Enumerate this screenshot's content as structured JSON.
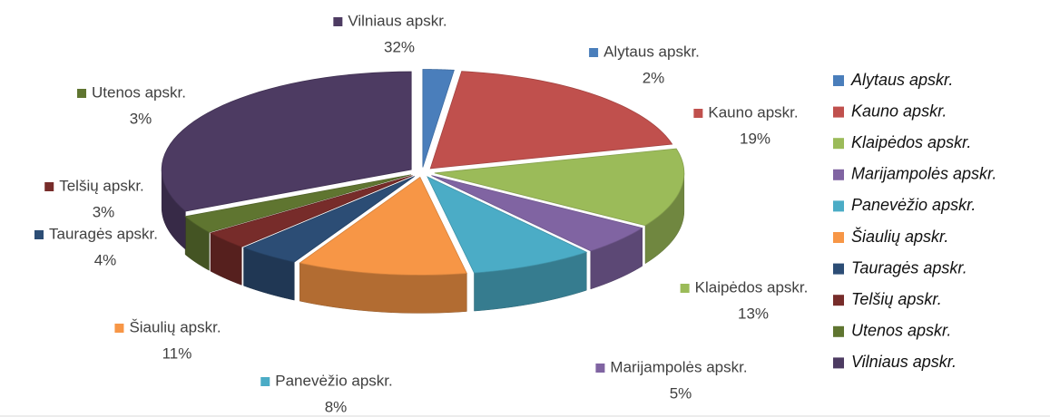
{
  "chart_data": {
    "type": "pie",
    "categories": [
      "Alytaus apskr.",
      "Kauno apskr.",
      "Klaipėdos apskr.",
      "Marijampolės apskr.",
      "Panevėžio apskr.",
      "Šiaulių apskr.",
      "Tauragės apskr.",
      "Telšių apskr.",
      "Utenos apskr.",
      "Vilniaus apskr."
    ],
    "values": [
      2,
      19,
      13,
      5,
      8,
      11,
      4,
      3,
      3,
      32
    ],
    "value_labels": [
      "2%",
      "19%",
      "13%",
      "5%",
      "8%",
      "11%",
      "4%",
      "3%",
      "3%",
      "32%"
    ],
    "colors": [
      "#4a7ebb",
      "#c0504d",
      "#9bbb59",
      "#8064a2",
      "#4bacc6",
      "#f79646",
      "#2c4d75",
      "#772c2a",
      "#5f7530",
      "#4d3b62"
    ],
    "legend": "right"
  }
}
